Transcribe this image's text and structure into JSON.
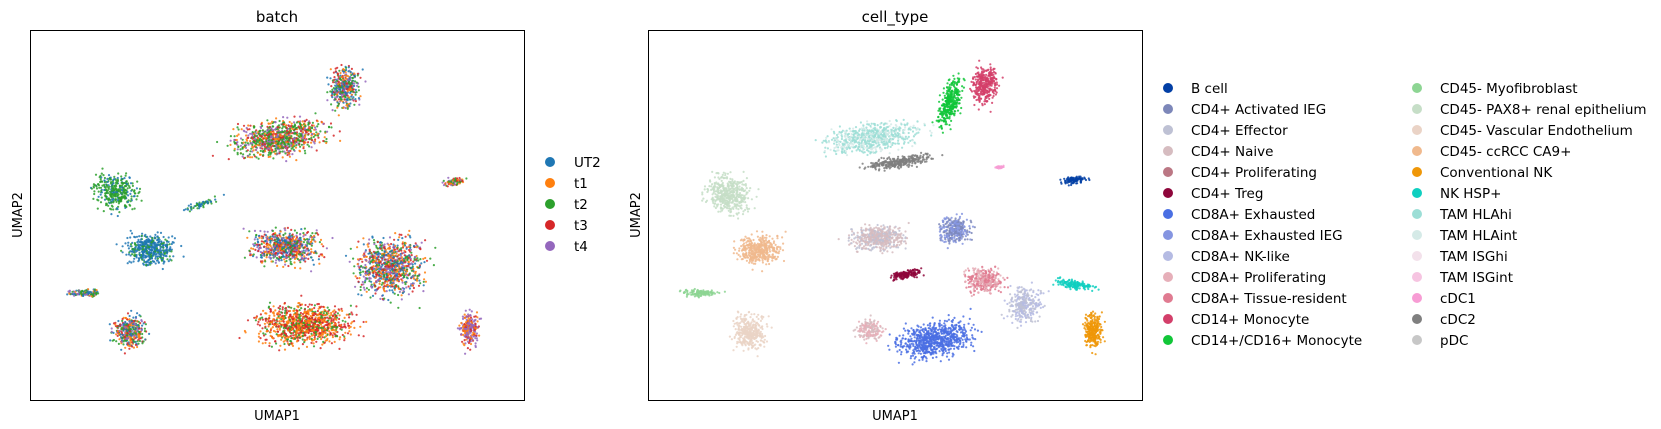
{
  "chart_data": [
    {
      "type": "scatter",
      "title": "batch",
      "xlabel": "UMAP1",
      "ylabel": "UMAP2",
      "legend_position": "right",
      "grid": false,
      "legend": [
        {
          "label": "UT2",
          "color": "#1f77b4"
        },
        {
          "label": "t1",
          "color": "#ff7f0e"
        },
        {
          "label": "t2",
          "color": "#2ca02c"
        },
        {
          "label": "t3",
          "color": "#d62728"
        },
        {
          "label": "t4",
          "color": "#9467bd"
        }
      ]
    },
    {
      "type": "scatter",
      "title": "cell_type",
      "xlabel": "UMAP1",
      "ylabel": "UMAP2",
      "legend_position": "right",
      "grid": false,
      "legend": [
        {
          "label": "B cell",
          "color": "#023fa5"
        },
        {
          "label": "CD4+ Activated IEG",
          "color": "#7d87b9"
        },
        {
          "label": "CD4+ Effector",
          "color": "#bec1d4"
        },
        {
          "label": "CD4+ Naive",
          "color": "#d6bcc0"
        },
        {
          "label": "CD4+ Proliferating",
          "color": "#bb7784"
        },
        {
          "label": "CD4+ Treg",
          "color": "#8e063b"
        },
        {
          "label": "CD8A+ Exhausted",
          "color": "#4a6fe3"
        },
        {
          "label": "CD8A+ Exhausted IEG",
          "color": "#8595e1"
        },
        {
          "label": "CD8A+ NK-like",
          "color": "#b5bbe3"
        },
        {
          "label": "CD8A+ Proliferating",
          "color": "#e6afb9"
        },
        {
          "label": "CD8A+ Tissue-resident",
          "color": "#e07b91"
        },
        {
          "label": "CD14+ Monocyte",
          "color": "#d33f6a"
        },
        {
          "label": "CD14+/CD16+ Monocyte",
          "color": "#11c638"
        },
        {
          "label": "CD45- Myofibroblast",
          "color": "#8dd593"
        },
        {
          "label": "CD45- PAX8+ renal epithelium",
          "color": "#c6dec7"
        },
        {
          "label": "CD45- Vascular Endothelium",
          "color": "#ead3c6"
        },
        {
          "label": "CD45- ccRCC CA9+",
          "color": "#f0b98d"
        },
        {
          "label": "Conventional NK",
          "color": "#ef9708"
        },
        {
          "label": "NK HSP+",
          "color": "#0fcfc0"
        },
        {
          "label": "TAM HLAhi",
          "color": "#9cded6"
        },
        {
          "label": "TAM HLAint",
          "color": "#d5eae7"
        },
        {
          "label": "TAM ISGhi",
          "color": "#f3e1eb"
        },
        {
          "label": "TAM ISGint",
          "color": "#f6c4e1"
        },
        {
          "label": "cDC1",
          "color": "#f79cd4"
        },
        {
          "label": "cDC2",
          "color": "#7f7f7f"
        },
        {
          "label": "pDC",
          "color": "#c7c7c7"
        }
      ]
    }
  ]
}
